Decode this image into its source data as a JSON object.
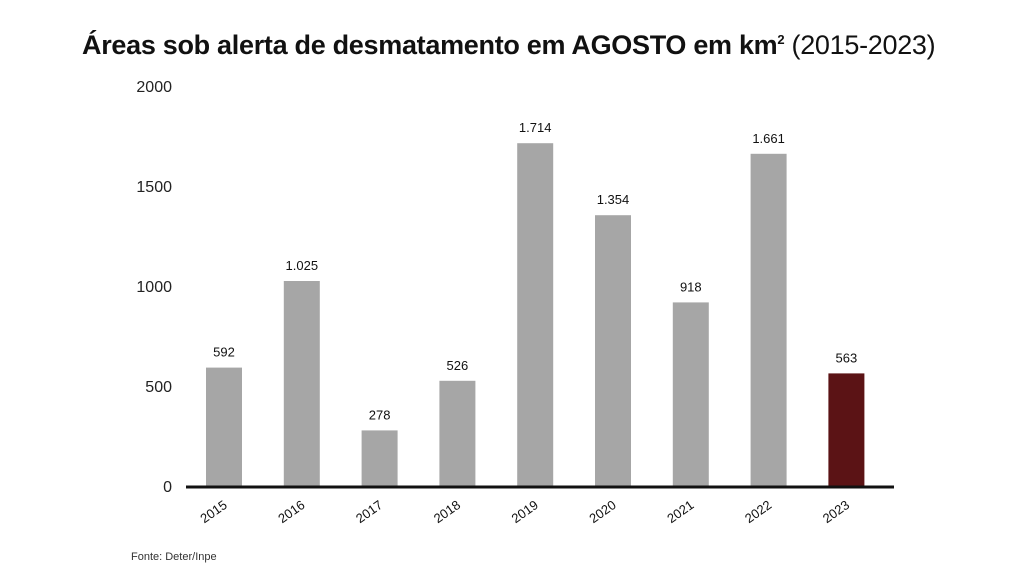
{
  "chart_data": {
    "type": "bar",
    "title": "Áreas sob alerta de desmatamento em AGOSTO em km",
    "title_superscript": "2",
    "subtitle": "(2015-2023)",
    "xlabel": "",
    "ylabel": "",
    "categories": [
      "2015",
      "2016",
      "2017",
      "2018",
      "2019",
      "2020",
      "2021",
      "2022",
      "2023"
    ],
    "values": [
      592,
      1025,
      278,
      526,
      1714,
      1354,
      918,
      1661,
      563
    ],
    "value_labels": [
      "592",
      "1.025",
      "278",
      "526",
      "1.714",
      "1.354",
      "918",
      "1.661",
      "563"
    ],
    "y_ticks": [
      "0",
      "500",
      "1000",
      "1500",
      "2000"
    ],
    "ylim": [
      0,
      2000
    ],
    "grid": false,
    "legend": "none",
    "colors": {
      "default_bar": "#a6a6a6",
      "highlight_bar": "#5b1315",
      "axis": "#111111"
    },
    "highlight_category": "2023"
  },
  "source": "Fonte: Deter/Inpe"
}
